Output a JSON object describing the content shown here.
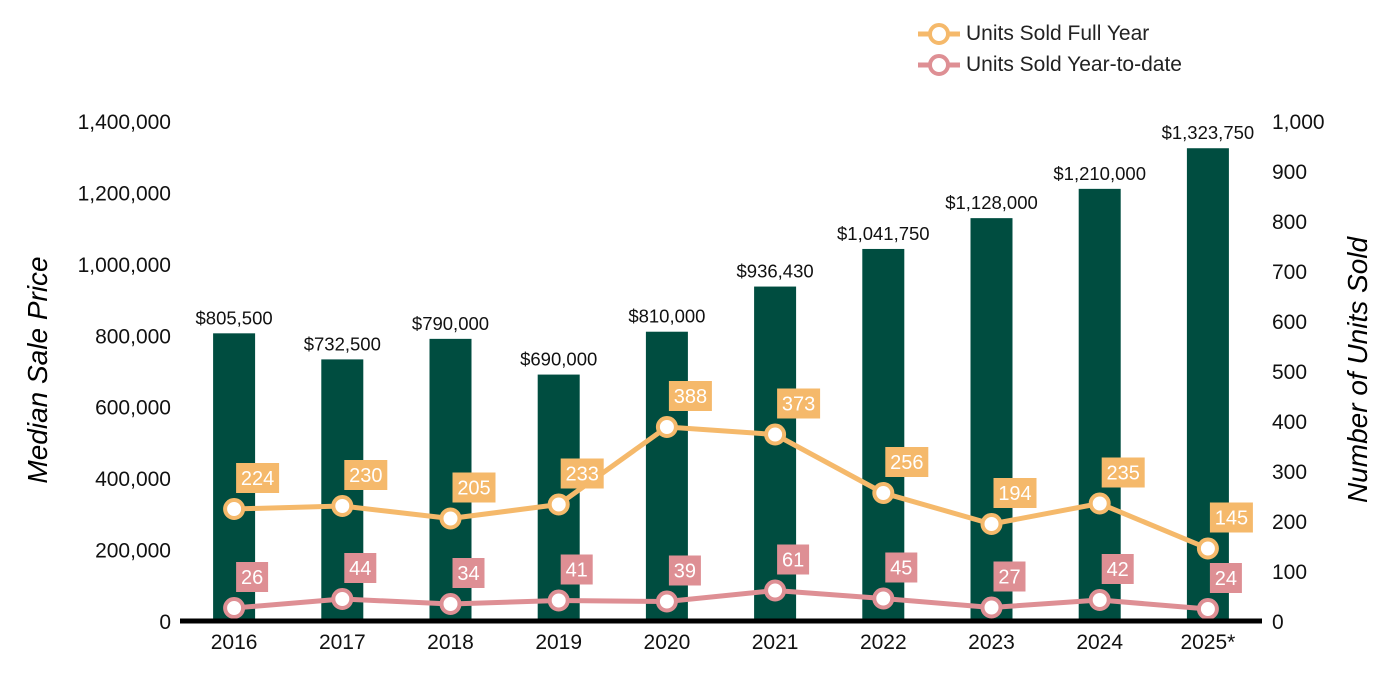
{
  "chart_data": {
    "type": "bar",
    "categories": [
      "2016",
      "2017",
      "2018",
      "2019",
      "2020",
      "2021",
      "2022",
      "2023",
      "2024",
      "2025*"
    ],
    "series": [
      {
        "kind": "bar",
        "axis": "left",
        "values": [
          805500,
          732500,
          790000,
          690000,
          810000,
          936430,
          1041750,
          1128000,
          1210000,
          1323750
        ],
        "value_labels": [
          "$805,500",
          "$732,500",
          "$790,000",
          "$690,000",
          "$810,000",
          "$936,430",
          "$1,041,750",
          "$1,128,000",
          "$1,210,000",
          "$1,323,750"
        ],
        "color": "#004d40"
      },
      {
        "kind": "line",
        "axis": "right",
        "name": "Units Sold Full Year",
        "values": [
          224,
          230,
          205,
          233,
          388,
          373,
          256,
          194,
          235,
          145
        ],
        "color": "#f5b96b"
      },
      {
        "kind": "line",
        "axis": "right",
        "name": "Units Sold Year-to-date",
        "values": [
          26,
          44,
          34,
          41,
          39,
          61,
          45,
          27,
          42,
          24
        ],
        "color": "#de8f94"
      }
    ],
    "ylabel": "Median Sale Price",
    "y2label": "Number of Units Sold",
    "ylim": [
      0,
      1400000
    ],
    "y2lim": [
      0,
      1000
    ],
    "yticks": [
      0,
      200000,
      400000,
      600000,
      800000,
      1000000,
      1200000,
      1400000
    ],
    "ytick_labels": [
      "0",
      "200,000",
      "400,000",
      "600,000",
      "800,000",
      "1,000,000",
      "1,200,000",
      "1,400,000"
    ],
    "y2ticks": [
      0,
      100,
      200,
      300,
      400,
      500,
      600,
      700,
      800,
      900,
      1000
    ],
    "y2tick_labels": [
      "0",
      "100",
      "200",
      "300",
      "400",
      "500",
      "600",
      "700",
      "800",
      "900",
      "1,000"
    ],
    "grid": false,
    "legend_position": "top-right"
  }
}
